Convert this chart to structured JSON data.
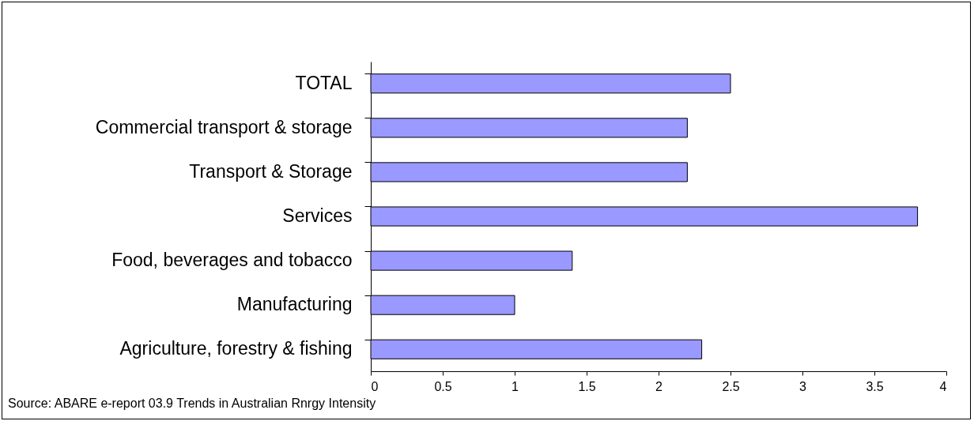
{
  "chart_data": {
    "type": "bar",
    "orientation": "horizontal",
    "categories": [
      "TOTAL",
      "Commercial transport & storage",
      "Transport & Storage",
      "Services",
      "Food, beverages and tobacco",
      "Manufacturing",
      "Agriculture, forestry & fishing"
    ],
    "values": [
      2.5,
      2.2,
      2.2,
      3.8,
      1.4,
      1.0,
      2.3
    ],
    "color": "#9999ff",
    "xlim": [
      0,
      4
    ],
    "xticks": [
      0,
      0.5,
      1,
      1.5,
      2,
      2.5,
      3,
      3.5,
      4
    ],
    "grid": false,
    "annotations": [
      "Source: ABARE e-report 03.9 Trends in Australian Rnrgy Intensity"
    ]
  }
}
